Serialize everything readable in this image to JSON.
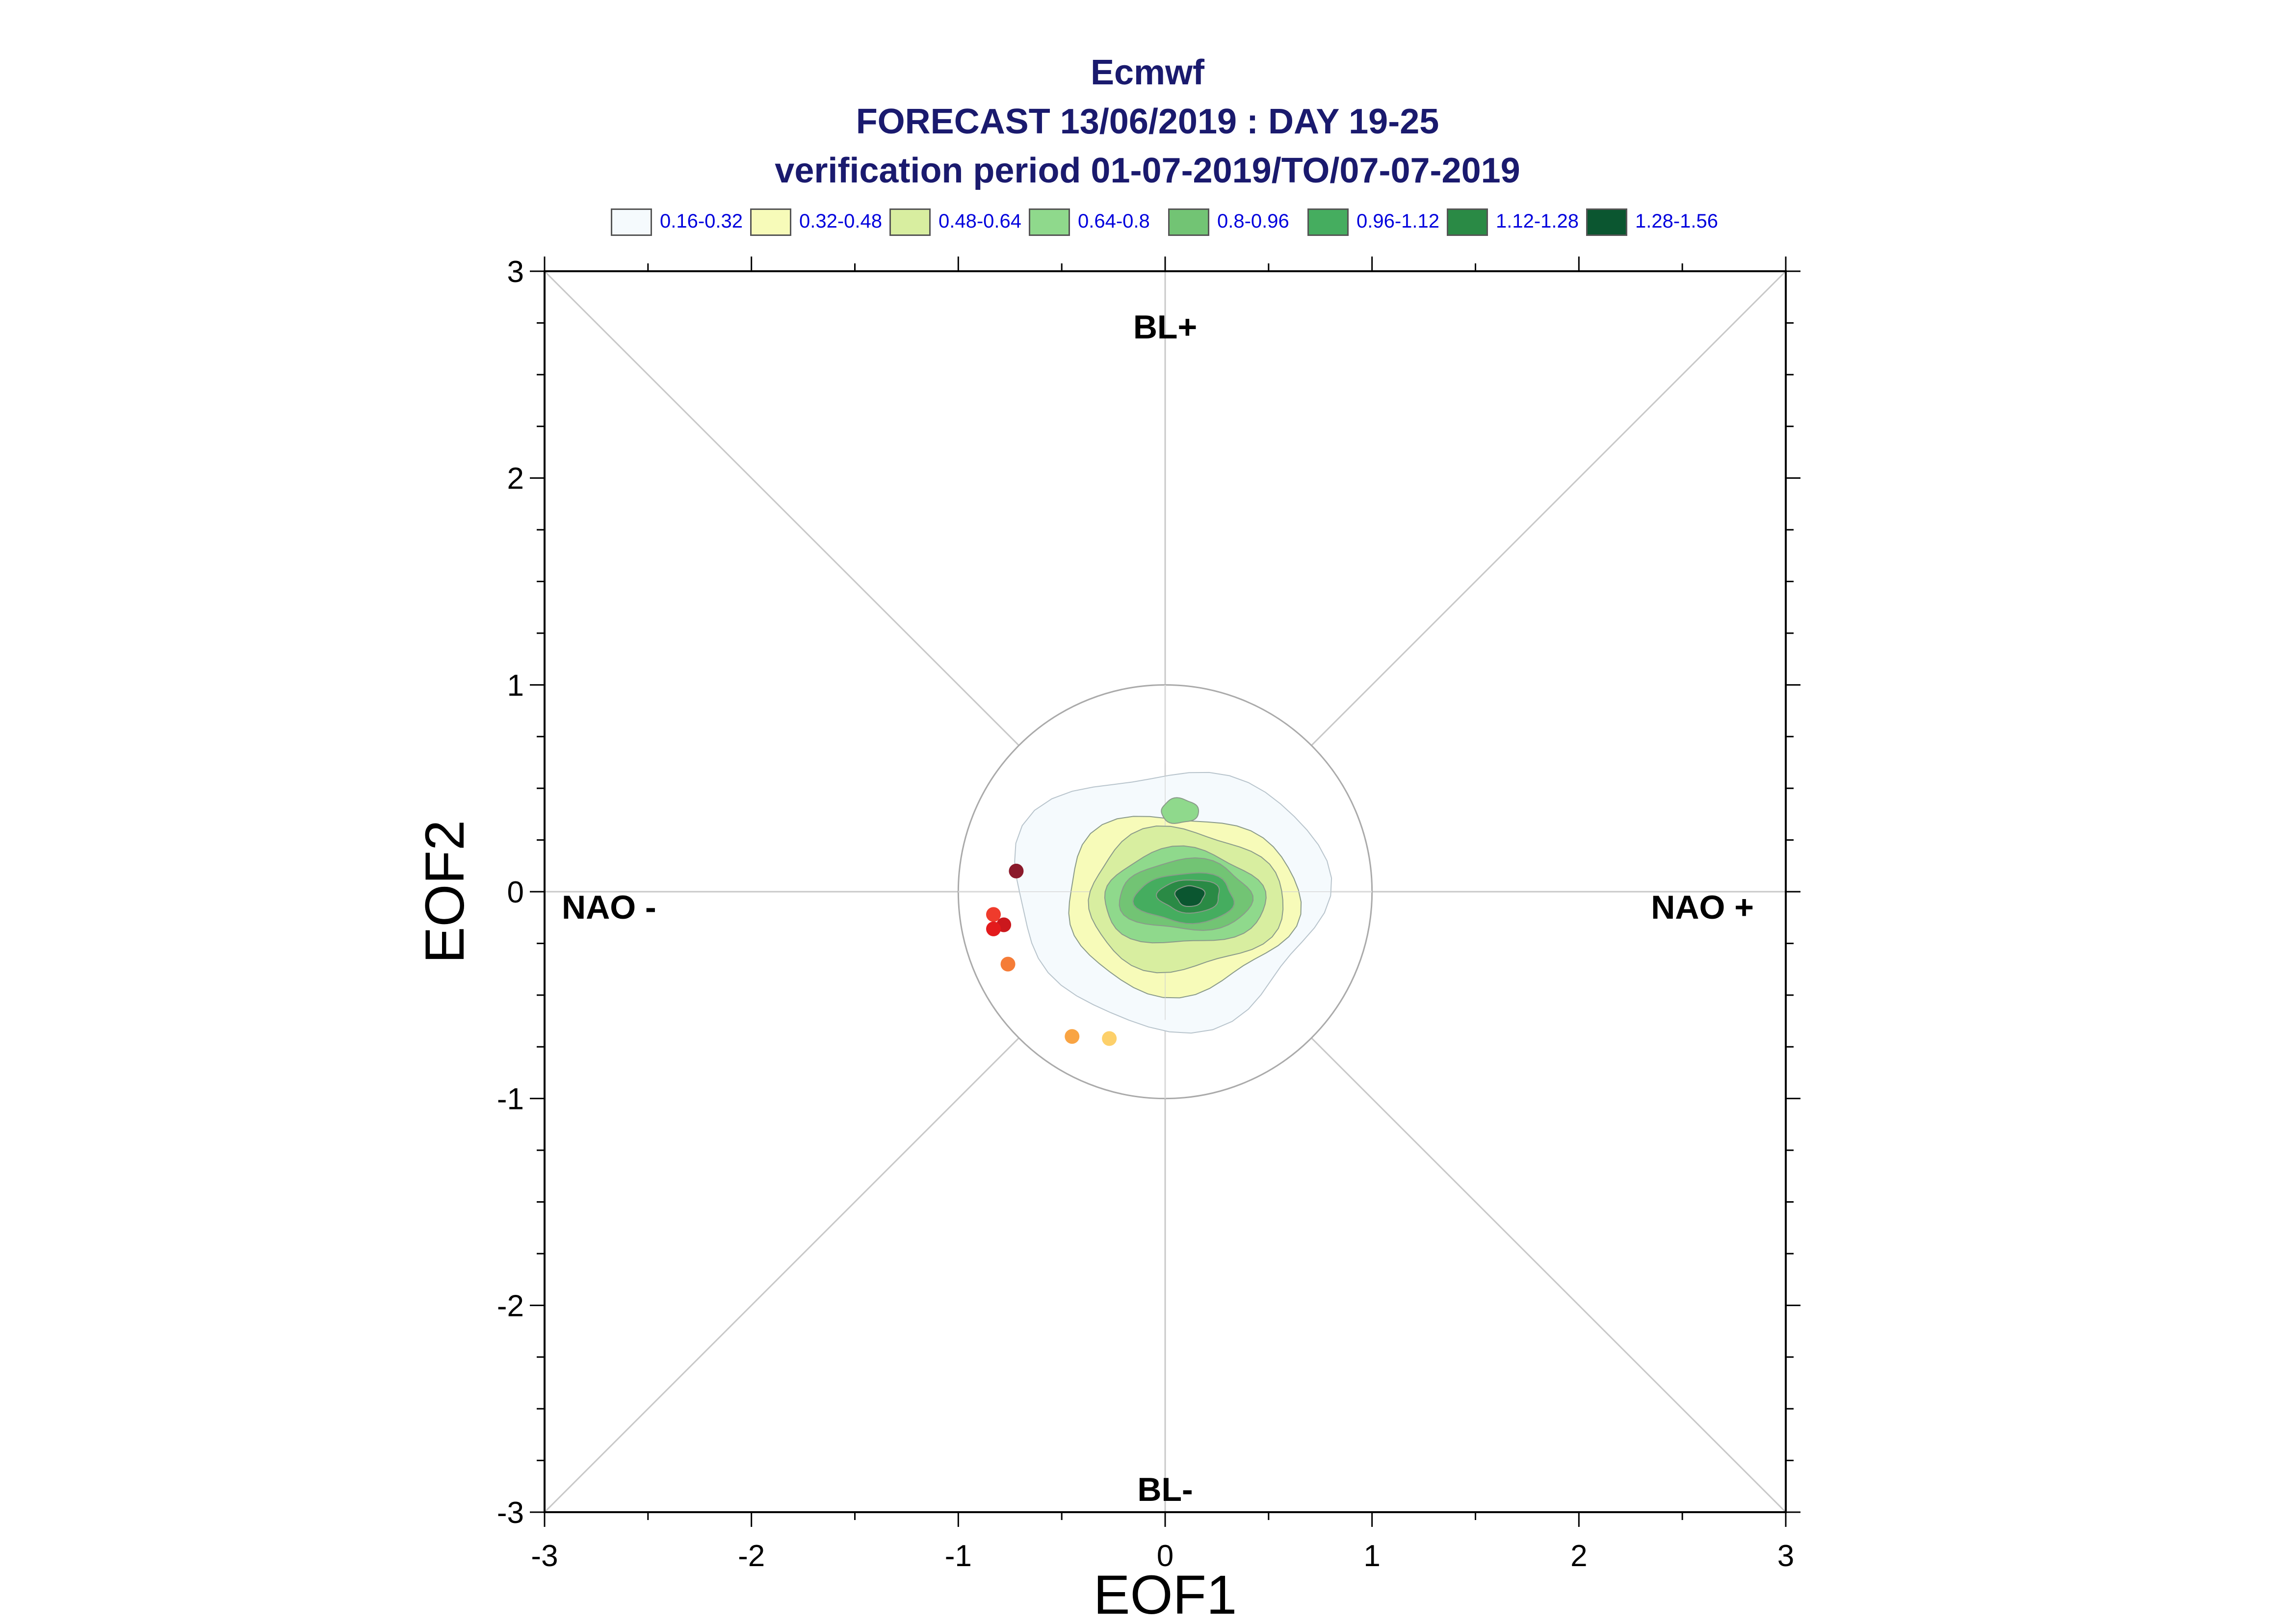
{
  "chart_data": {
    "type": "contour-scatter",
    "title": "Ecmwf",
    "subtitle_1": "FORECAST 13/06/2019 : DAY 19-25",
    "subtitle_2": "verification period 01-07-2019/TO/07-07-2019",
    "xlabel": "EOF1",
    "ylabel": "EOF2",
    "xlim": [
      -3,
      3
    ],
    "ylim": [
      -3,
      3
    ],
    "xticks": [
      "-3",
      "-2",
      "-1",
      "0",
      "1",
      "2",
      "3"
    ],
    "yticks": [
      "-3",
      "-2",
      "-1",
      "0",
      "1",
      "2",
      "3"
    ],
    "regime_labels": {
      "top": "BL+",
      "bottom": "BL-",
      "left": "NAO -",
      "right": "NAO +"
    },
    "legend": [
      {
        "label": "0.16-0.32",
        "color": "#f5fafd"
      },
      {
        "label": "0.32-0.48",
        "color": "#f7fbb9"
      },
      {
        "label": "0.48-0.64",
        "color": "#d8eea0"
      },
      {
        "label": "0.64-0.8",
        "color": "#8fd98c"
      },
      {
        "label": "0.8-0.96",
        "color": "#72c474"
      },
      {
        "label": "0.96-1.12",
        "color": "#45ad5f"
      },
      {
        "label": "1.12-1.28",
        "color": "#2a8a45"
      },
      {
        "label": "1.28-1.56",
        "color": "#0b5630"
      }
    ],
    "reference_circle_radius": 1.0,
    "density_contours": [
      {
        "level": "0.16-0.32",
        "color": "#f5fafd",
        "cx": 0.02,
        "cy": -0.02,
        "rx": 0.75,
        "ry": 0.62
      },
      {
        "level": "0.32-0.48",
        "color": "#f7fbb9",
        "cx": 0.07,
        "cy": -0.05,
        "rx": 0.56,
        "ry": 0.43
      },
      {
        "level": "0.48-0.64",
        "color": "#d8eea0",
        "cx": 0.09,
        "cy": -0.04,
        "rx": 0.47,
        "ry": 0.34
      },
      {
        "level": "0.64-0.8",
        "color": "#8fd98c",
        "cx": 0.09,
        "cy": -0.03,
        "rx": 0.39,
        "ry": 0.23
      },
      {
        "level": "0.8-0.96",
        "color": "#72c474",
        "cx": 0.1,
        "cy": -0.02,
        "rx": 0.32,
        "ry": 0.17
      },
      {
        "level": "0.96-1.12",
        "color": "#45ad5f",
        "cx": 0.1,
        "cy": -0.03,
        "rx": 0.24,
        "ry": 0.12
      },
      {
        "level": "1.12-1.28",
        "color": "#2a8a45",
        "cx": 0.12,
        "cy": -0.02,
        "rx": 0.15,
        "ry": 0.08
      },
      {
        "level": "1.28-1.56",
        "color": "#0b5630",
        "cx": 0.12,
        "cy": -0.02,
        "rx": 0.07,
        "ry": 0.05
      }
    ],
    "secondary_blob": {
      "level": "0.64-0.8",
      "color": "#8fd98c",
      "cx": 0.07,
      "cy": 0.39,
      "rx": 0.09,
      "ry": 0.06
    },
    "points": [
      {
        "x": -0.72,
        "y": 0.1,
        "color": "#8b1a2b"
      },
      {
        "x": -0.83,
        "y": -0.11,
        "color": "#ef3b2c"
      },
      {
        "x": -0.78,
        "y": -0.16,
        "color": "#cb181d"
      },
      {
        "x": -0.83,
        "y": -0.18,
        "color": "#e31a1c"
      },
      {
        "x": -0.76,
        "y": -0.35,
        "color": "#f57c37"
      },
      {
        "x": -0.45,
        "y": -0.7,
        "color": "#f9a443"
      },
      {
        "x": -0.27,
        "y": -0.71,
        "color": "#fdd06a"
      }
    ]
  }
}
